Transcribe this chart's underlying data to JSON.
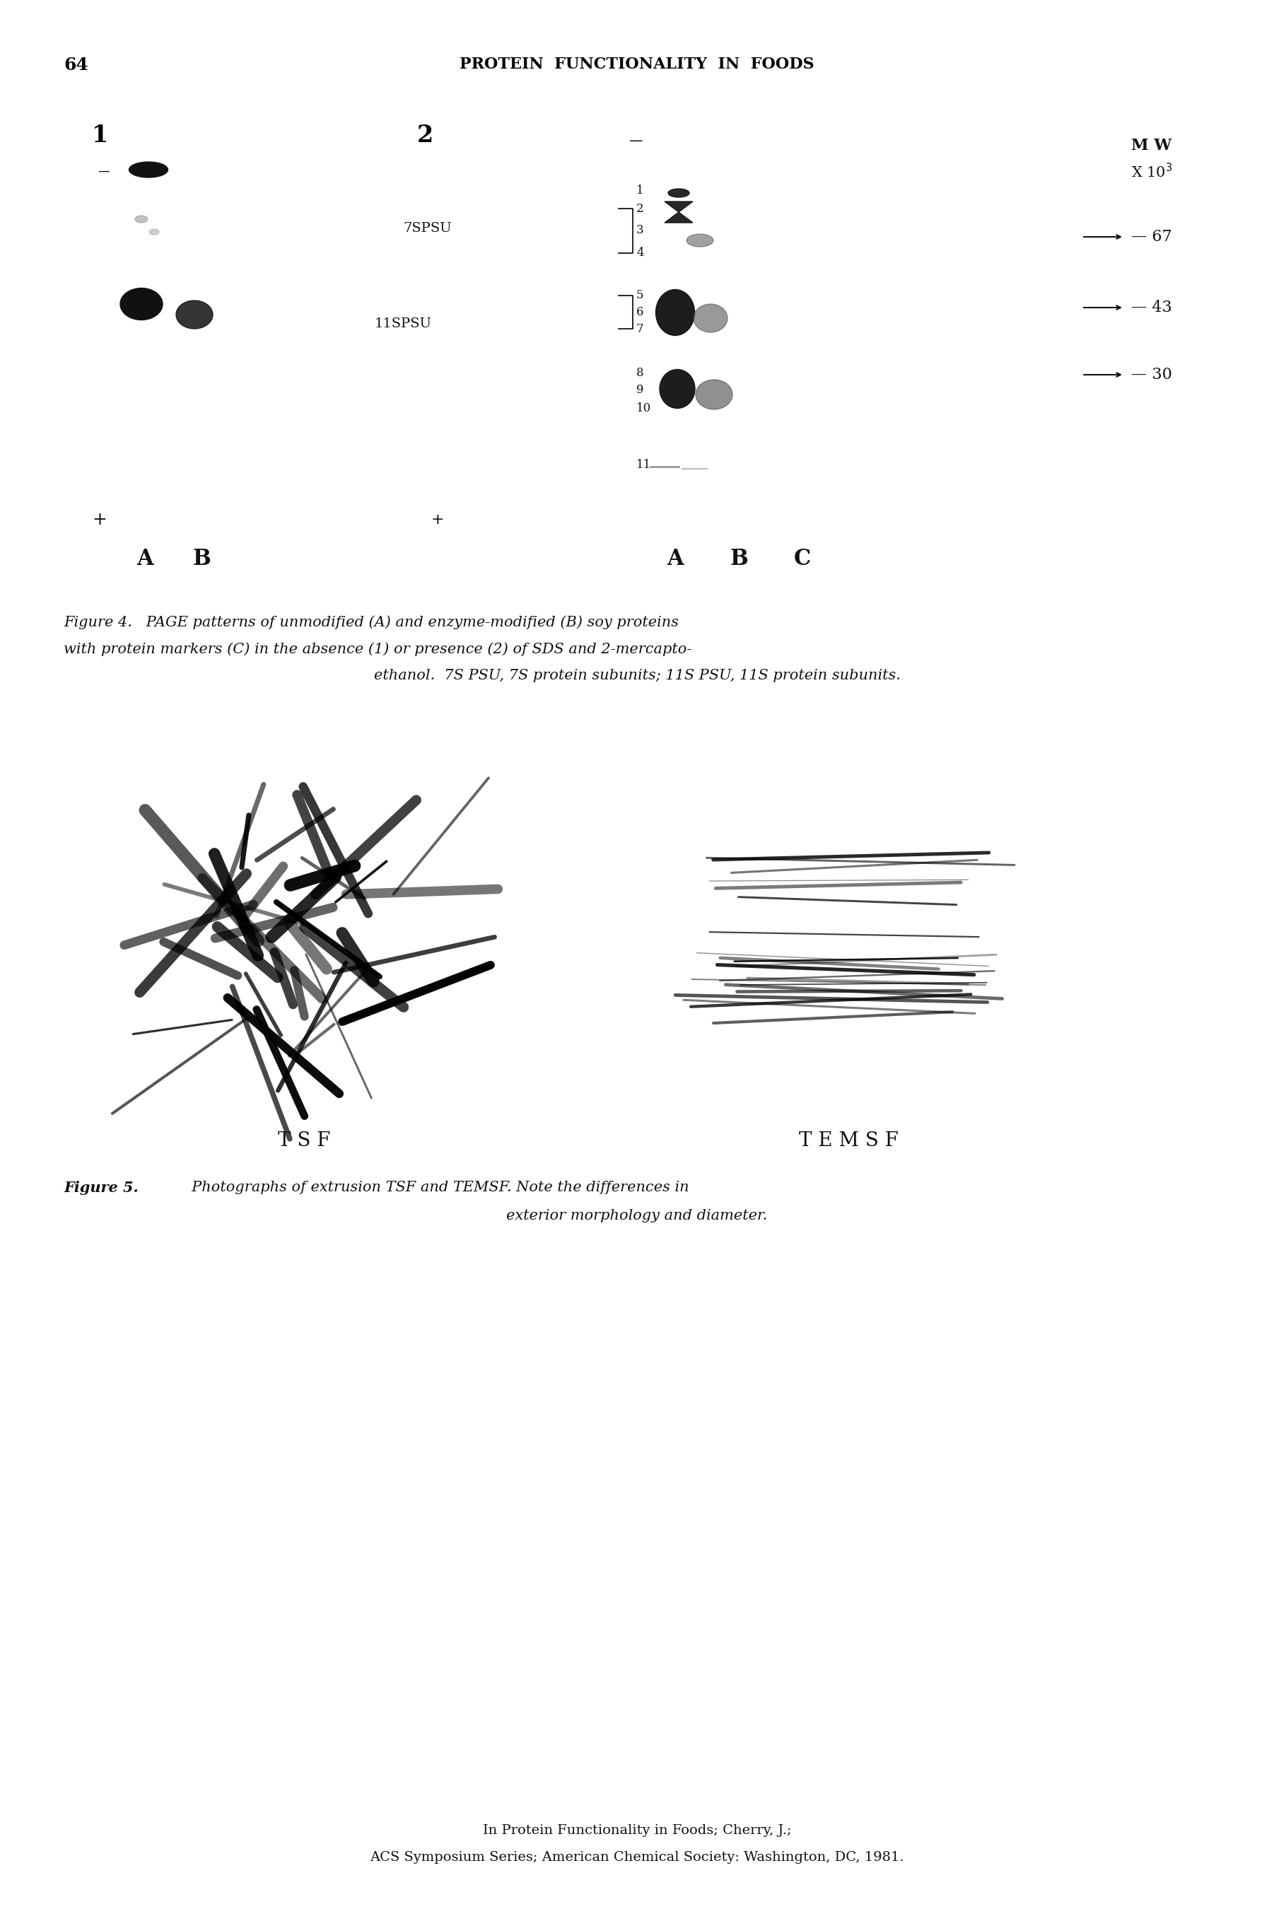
{
  "page_number": "64",
  "header_text": "PROTEIN  FUNCTIONALITY  IN  FOODS",
  "background_color": "#ffffff",
  "text_color": "#000000",
  "fig4_caption_line1": "Figure 4.   PAGE patterns of unmodified (A) and enzyme-modified (B) soy proteins",
  "fig4_caption_line2": "with protein markers (C) in the absence (1) or presence (2) of SDS and 2-mercapto-",
  "fig4_caption_line3": "ethanol.  7S PSU, 7S protein subunits; 11S PSU, 11S protein subunits.",
  "fig5_caption_bold": "Figure 5.",
  "fig5_caption_rest": "  Photographs of extrusion TSF and TEMSF. Note the differences in",
  "fig5_caption_line2": "exterior morphology and diameter.",
  "footer_line1": "In Protein Functionality in Foods; Cherry, J.;",
  "footer_line2": "ACS Symposium Series; American Chemical Society: Washington, DC, 1981.",
  "tsf_label": "T S F",
  "temsf_label": "T E M S F"
}
